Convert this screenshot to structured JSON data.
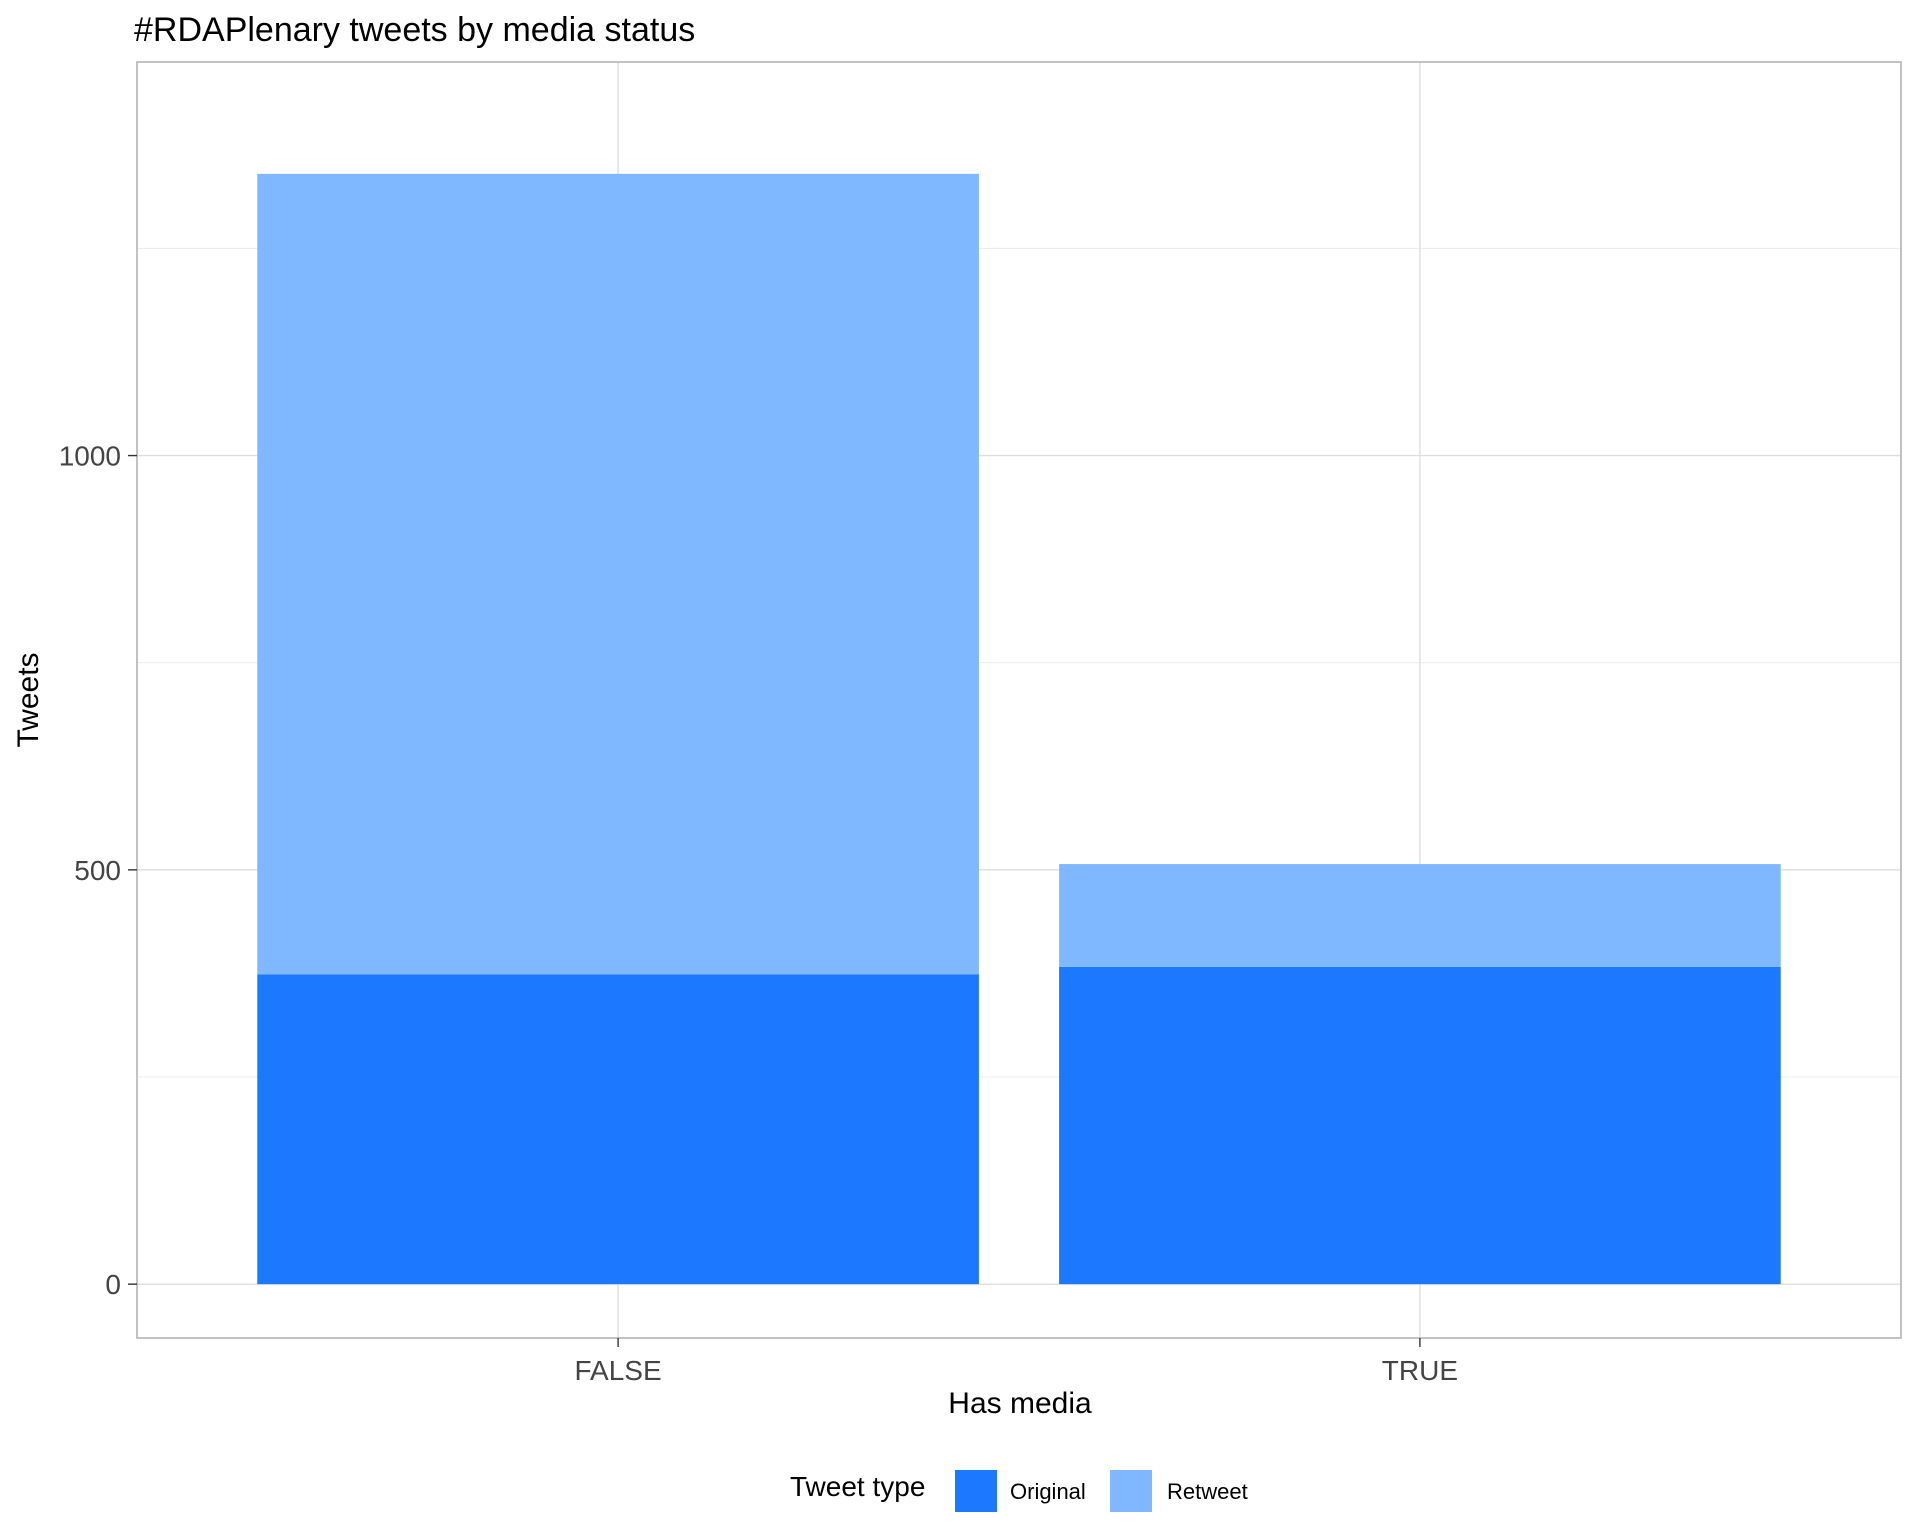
{
  "chart_data": {
    "type": "bar",
    "stacked": true,
    "title": "#RDAPlenary tweets by media status",
    "xlabel": "Has media",
    "ylabel": "Tweets",
    "categories": [
      "FALSE",
      "TRUE"
    ],
    "series": [
      {
        "name": "Original",
        "color": "#1C78FF",
        "values": [
          374,
          383
        ]
      },
      {
        "name": "Retweet",
        "color": "#7FB8FF",
        "values": [
          966,
          124
        ]
      }
    ],
    "ylim": [
      -65,
      1475
    ],
    "y_ticks": [
      0,
      500,
      1000
    ],
    "y_minor_ticks": [
      250,
      750,
      1250
    ],
    "y_tick_labels": [
      "0",
      "500",
      "1000"
    ],
    "grid": true,
    "legend": {
      "title": "Tweet type",
      "position": "bottom",
      "items": [
        "Original",
        "Retweet"
      ]
    }
  }
}
